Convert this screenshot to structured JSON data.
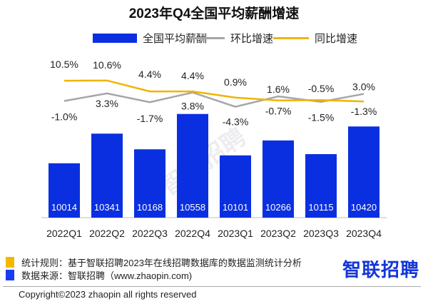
{
  "chart_data": {
    "type": "bar+line",
    "title": "2023年Q4全国平均薪酬增速",
    "categories": [
      "2022Q1",
      "2022Q2",
      "2022Q3",
      "2022Q4",
      "2023Q1",
      "2023Q2",
      "2023Q3",
      "2023Q4"
    ],
    "series": [
      {
        "name": "全国平均薪酬",
        "type": "bar",
        "color": "#0a2fe0",
        "values": [
          10014,
          10341,
          10168,
          10558,
          10101,
          10266,
          10115,
          10420
        ]
      },
      {
        "name": "环比增速",
        "type": "line",
        "color": "#a6a6a6",
        "values": [
          -1.0,
          3.3,
          -1.7,
          3.8,
          -4.3,
          1.6,
          -1.5,
          3.0
        ],
        "labels": [
          "-1.0%",
          "3.3%",
          "-1.7%",
          "3.8%",
          "-4.3%",
          "1.6%",
          "-1.5%",
          "3.0%"
        ]
      },
      {
        "name": "同比增速",
        "type": "line",
        "color": "#f0b400",
        "values": [
          10.5,
          10.6,
          4.4,
          4.4,
          0.9,
          -0.7,
          -0.5,
          -1.3
        ],
        "labels": [
          "10.5%",
          "10.6%",
          "4.4%",
          "4.4%",
          "0.9%",
          "-0.7%",
          "-0.5%",
          "-1.3%"
        ]
      }
    ],
    "legend": "top",
    "grid": false
  },
  "notes": {
    "rule": "统计规则：基于智联招聘2023年在线招聘数据库的数据监测统计分析",
    "source": "数据来源：智联招聘（www.zhaopin.com)",
    "rule_color": "#f5b800",
    "source_color": "#1a3cf0"
  },
  "logo": "智联招聘",
  "watermark": "智联招聘",
  "copyright": "Copyright©2023 zhaopin all rights reserved"
}
